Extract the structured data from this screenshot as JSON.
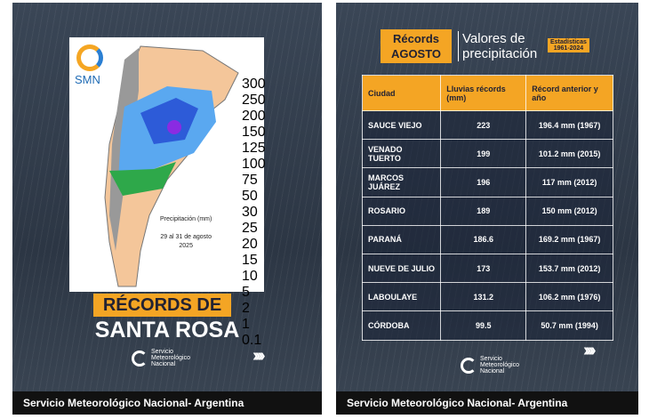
{
  "left": {
    "logo": "SMN",
    "map_caption": [
      "Precipitación (mm)",
      "29 al 31 de agosto",
      "2025"
    ],
    "legend": [
      "300",
      "250",
      "200",
      "150",
      "125",
      "100",
      "75",
      "50",
      "30",
      "25",
      "20",
      "15",
      "10",
      "5",
      "2",
      "1",
      "0.1"
    ],
    "title_line1": "RÉCORDS DE",
    "title_line2": "SANTA ROSA",
    "brand": [
      "Servicio",
      "Meteorológico",
      "Nacional"
    ],
    "footer": "Servicio Meteorológico Nacional- Argentina"
  },
  "right": {
    "badge": [
      "Récords",
      "AGOSTO"
    ],
    "heading": [
      "Valores de",
      "precipitación"
    ],
    "stats": [
      "Estadísticas",
      "1961-2024"
    ],
    "table": {
      "header": [
        "Ciudad",
        "Lluvias récords (mm)",
        "Récord anterior y año"
      ],
      "rows": [
        [
          "SAUCE VIEJO",
          "223",
          "196.4 mm (1967)"
        ],
        [
          "VENADO TUERTO",
          "199",
          "101.2 mm (2015)"
        ],
        [
          "MARCOS JUÁREZ",
          "196",
          "117 mm (2012)"
        ],
        [
          "ROSARIO",
          "189",
          "150 mm (2012)"
        ],
        [
          "PARANÁ",
          "186.6",
          "169.2 mm (1967)"
        ],
        [
          "NUEVE DE JULIO",
          "173",
          "153.7 mm (2012)"
        ],
        [
          "LABOULAYE",
          "131.2",
          "106.2 mm (1976)"
        ],
        [
          "CÓRDOBA",
          "99.5",
          "50.7 mm (1994)"
        ]
      ]
    },
    "brand": [
      "Servicio",
      "Meteorológico",
      "Nacional"
    ],
    "footer": "Servicio Meteorológico Nacional- Argentina"
  }
}
